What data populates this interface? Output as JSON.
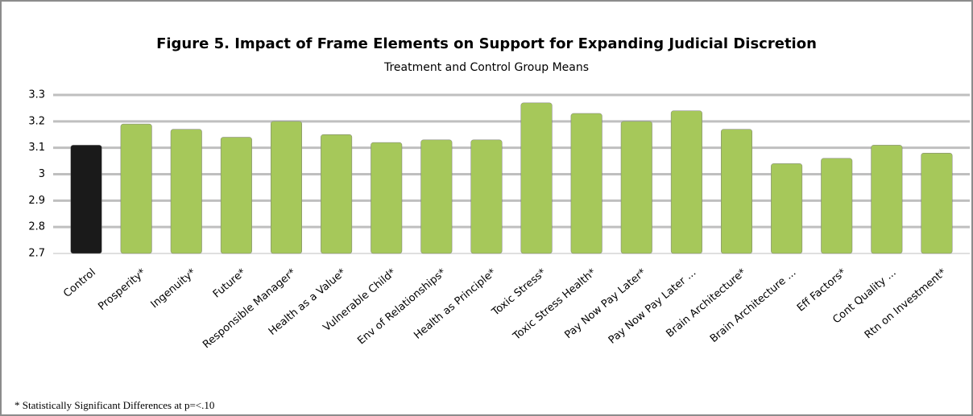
{
  "chart_data": {
    "type": "bar",
    "title": "Figure 5. Impact of Frame Elements on Support for Expanding Judicial Discretion",
    "subtitle": "Treatment and Control Group Means",
    "footnote": "* Statistically Significant Differences at p=<.10",
    "categories": [
      "Control",
      "Prosperity*",
      "Ingenuity*",
      "Future*",
      "Responsible Manager*",
      "Health as a Value*",
      "Vulnerable Child*",
      "Env of Relationships*",
      "Health as Principle*",
      "Toxic Stress*",
      "Toxic Stress Health*",
      "Pay Now Pay Later*",
      "Pay Now Pay Later ...",
      "Brain Architecture*",
      "Brain Architecture ...",
      "Eff Factors*",
      "Cont Quality ...",
      "Rtn on Investment*"
    ],
    "values": [
      3.11,
      3.19,
      3.17,
      3.14,
      3.2,
      3.15,
      3.12,
      3.13,
      3.13,
      3.27,
      3.23,
      3.2,
      3.24,
      3.17,
      3.04,
      3.06,
      3.11,
      3.08
    ],
    "colors": [
      "#1a1a1a",
      "#a6c85a",
      "#a6c85a",
      "#a6c85a",
      "#a6c85a",
      "#a6c85a",
      "#a6c85a",
      "#a6c85a",
      "#a6c85a",
      "#a6c85a",
      "#a6c85a",
      "#a6c85a",
      "#a6c85a",
      "#a6c85a",
      "#a6c85a",
      "#a6c85a",
      "#a6c85a",
      "#a6c85a"
    ],
    "ylim": [
      2.7,
      3.3
    ],
    "yticks": [
      2.7,
      2.8,
      2.9,
      3,
      3.1,
      3.2,
      3.3
    ],
    "grid": true
  }
}
